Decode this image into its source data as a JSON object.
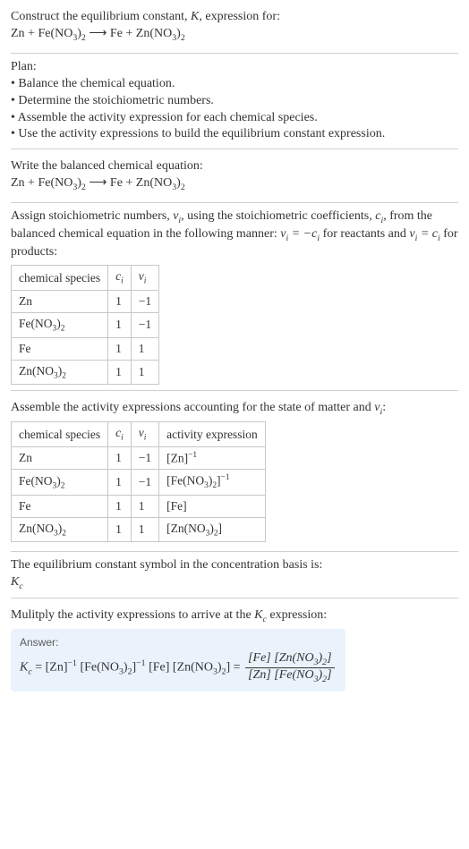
{
  "colors": {
    "border": "#d0d0d0",
    "cell_border": "#c8c8c8",
    "answer_bg": "#eaf3fb",
    "text": "#333333"
  },
  "fonts": {
    "body_size": 14,
    "table_size": 13.5,
    "answer_label_size": 12
  },
  "intro": {
    "title_prefix": "Construct the equilibrium constant, ",
    "title_k": "K",
    "title_suffix": ", expression for:",
    "eq_lhs1": "Zn + Fe(NO",
    "eq_sub1": "3",
    "eq_rparen1": ")",
    "eq_sub2": "2",
    "eq_arrow": " ⟶ ",
    "eq_rhs1": "Fe + Zn(NO",
    "eq_sub3": "3",
    "eq_rparen2": ")",
    "eq_sub4": "2"
  },
  "plan": {
    "heading": "Plan:",
    "b1": "• Balance the chemical equation.",
    "b2": "• Determine the stoichiometric numbers.",
    "b3": "• Assemble the activity expression for each chemical species.",
    "b4": "• Use the activity expressions to build the equilibrium constant expression."
  },
  "balanced": {
    "heading": "Write the balanced chemical equation:"
  },
  "assign": {
    "line1a": "Assign stoichiometric numbers, ",
    "nu": "ν",
    "sub_i": "i",
    "line1b": ", using the stoichiometric coefficients, ",
    "c": "c",
    "line1c": ", from the balanced chemical equation in the following manner: ",
    "rel1": " = −",
    "line1d": " for reactants and ",
    "rel2": " = ",
    "line1e": " for products:"
  },
  "table1": {
    "h1": "chemical species",
    "h2": "cᵢ",
    "h2_c": "c",
    "h2_i": "i",
    "h3_nu": "ν",
    "h3_i": "i",
    "r1": {
      "s_a": "Zn",
      "s_b": "",
      "c": "1",
      "v": "−1"
    },
    "r2": {
      "s_a": "Fe(NO",
      "s_sub1": "3",
      "s_b": ")",
      "s_sub2": "2",
      "c": "1",
      "v": "−1"
    },
    "r3": {
      "s_a": "Fe",
      "s_b": "",
      "c": "1",
      "v": "1"
    },
    "r4": {
      "s_a": "Zn(NO",
      "s_sub1": "3",
      "s_b": ")",
      "s_sub2": "2",
      "c": "1",
      "v": "1"
    }
  },
  "assemble": {
    "heading_a": "Assemble the activity expressions accounting for the state of matter and ",
    "heading_b": ":"
  },
  "table2": {
    "h1": "chemical species",
    "h2_c": "c",
    "h2_i": "i",
    "h3_nu": "ν",
    "h3_i": "i",
    "h4": "activity expression",
    "r1": {
      "s": "Zn",
      "c": "1",
      "v": "−1",
      "ae_a": "[Zn]",
      "ae_sup": "−1"
    },
    "r2": {
      "s_a": "Fe(NO",
      "s_sub1": "3",
      "s_b": ")",
      "s_sub2": "2",
      "c": "1",
      "v": "−1",
      "ae_a": "[Fe(NO",
      "ae_sub1": "3",
      "ae_b": ")",
      "ae_sub2": "2",
      "ae_c": "]",
      "ae_sup": "−1"
    },
    "r3": {
      "s": "Fe",
      "c": "1",
      "v": "1",
      "ae_a": "[Fe]"
    },
    "r4": {
      "s_a": "Zn(NO",
      "s_sub1": "3",
      "s_b": ")",
      "s_sub2": "2",
      "c": "1",
      "v": "1",
      "ae_a": "[Zn(NO",
      "ae_sub1": "3",
      "ae_b": ")",
      "ae_sub2": "2",
      "ae_c": "]"
    }
  },
  "kc_symbol": {
    "line": "The equilibrium constant symbol in the concentration basis is:",
    "K": "K",
    "c": "c"
  },
  "multiply": {
    "line_a": "Mulitply the activity expressions to arrive at the ",
    "K": "K",
    "c": "c",
    "line_b": " expression:"
  },
  "answer": {
    "label": "Answer:",
    "K": "K",
    "c": "c",
    "eq": " = ",
    "t1": "[Zn]",
    "t1_sup": "−1",
    "t2a": " [Fe(NO",
    "t2_sub1": "3",
    "t2b": ")",
    "t2_sub2": "2",
    "t2c": "]",
    "t2_sup": "−1",
    "t3": " [Fe] ",
    "t4a": "[Zn(NO",
    "t4_sub1": "3",
    "t4b": ")",
    "t4_sub2": "2",
    "t4c": "]",
    "eq2": " = ",
    "num_a": "[Fe] [Zn(NO",
    "num_sub1": "3",
    "num_b": ")",
    "num_sub2": "2",
    "num_c": "]",
    "den_a": "[Zn] [Fe(NO",
    "den_sub1": "3",
    "den_b": ")",
    "den_sub2": "2",
    "den_c": "]"
  }
}
